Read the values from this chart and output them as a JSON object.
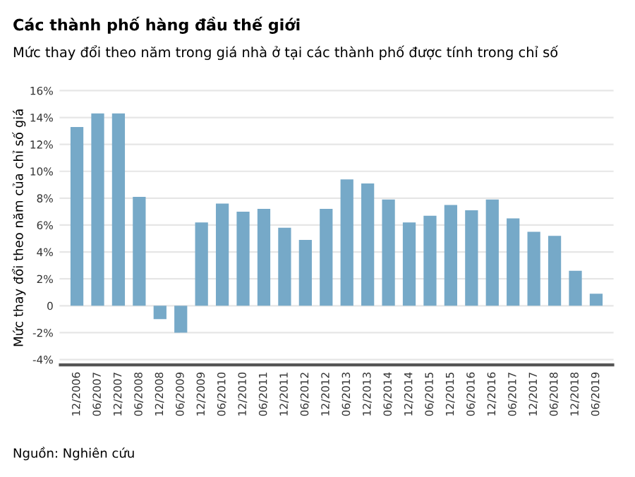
{
  "chart_data": {
    "type": "bar",
    "title": "Các thành phố hàng đầu thế giới",
    "subtitle": "Mức thay đổi theo năm trong giá nhà ở tại các thành phố được tính trong chỉ số",
    "ylabel": "Mức thay đổi theo năm của chỉ số giá",
    "categories": [
      "12/2006",
      "06/2007",
      "12/2007",
      "06/2008",
      "12/2008",
      "06/2009",
      "12/2009",
      "06/2010",
      "12/2010",
      "06/2011",
      "12/2011",
      "06/2012",
      "12/2012",
      "06/2013",
      "12/2013",
      "06/2014",
      "12/2014",
      "06/2015",
      "12/2015",
      "06/2016",
      "12/2016",
      "06/2017",
      "12/2017",
      "06/2018",
      "12/2018",
      "06/2019"
    ],
    "values": [
      13.3,
      14.3,
      14.3,
      8.1,
      -1.0,
      -2.0,
      6.2,
      7.6,
      7.0,
      7.2,
      5.8,
      4.9,
      7.2,
      9.4,
      9.1,
      7.9,
      6.2,
      6.7,
      7.5,
      7.1,
      7.9,
      6.5,
      5.5,
      5.2,
      2.6,
      0.9
    ],
    "color": "#76a9c8",
    "ylim": [
      -4.4,
      16
    ],
    "yticks": [
      {
        "value": -4,
        "label": "-4%"
      },
      {
        "value": -2,
        "label": "-2%"
      },
      0,
      {
        "value": 2,
        "label": "2%"
      },
      {
        "value": 4,
        "label": "4%"
      },
      {
        "value": 6,
        "label": "6%"
      },
      {
        "value": 8,
        "label": "8%"
      },
      {
        "value": 10,
        "label": "10%"
      },
      {
        "value": 12,
        "label": "12%"
      },
      {
        "value": 14,
        "label": "14%"
      },
      {
        "value": 16,
        "label": "16%"
      }
    ],
    "grid": "y",
    "annotations": [
      "Nguồn: Nghiên cứu"
    ]
  }
}
